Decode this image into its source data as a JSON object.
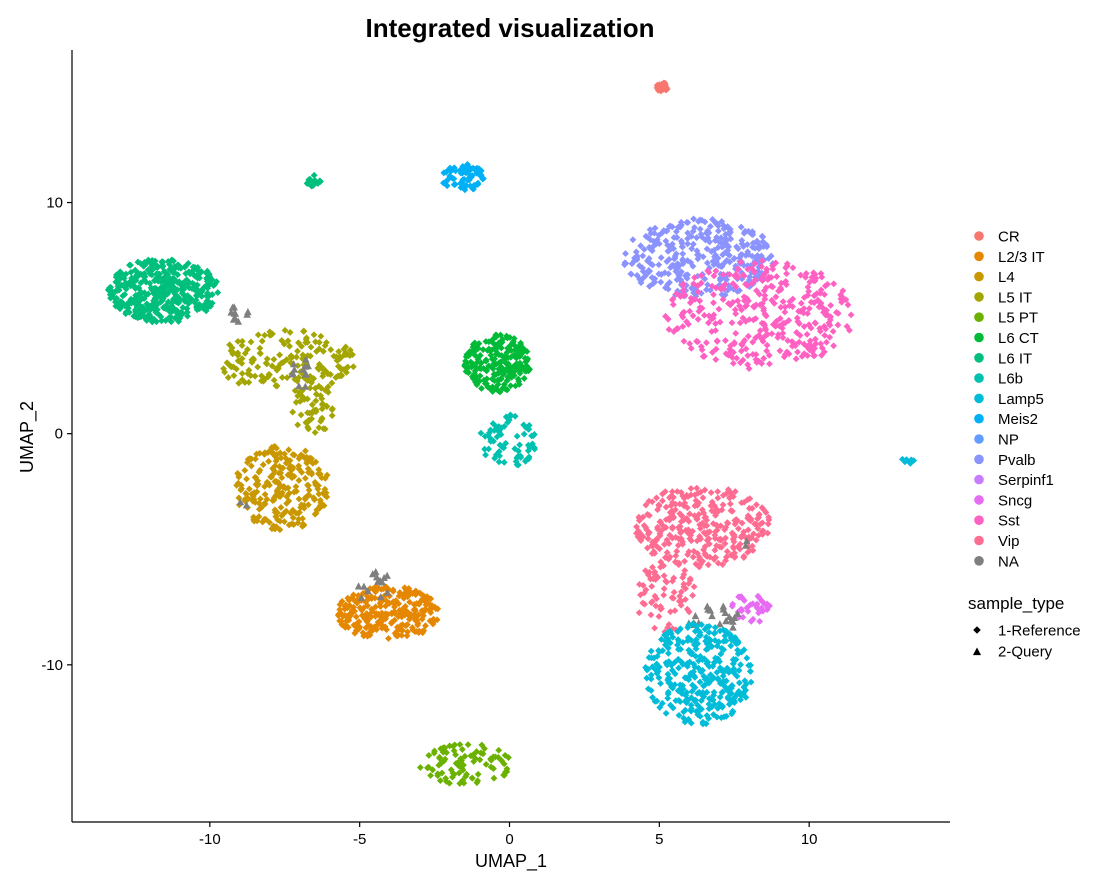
{
  "chart_data": {
    "type": "scatter",
    "title": "Integrated visualization",
    "xlabel": "UMAP_1",
    "ylabel": "UMAP_2",
    "xlim": [
      -14.6,
      14.7
    ],
    "ylim": [
      -16.8,
      16.6
    ],
    "xticks": [
      -10,
      -5,
      0,
      5,
      10
    ],
    "yticks": [
      -10,
      0,
      10
    ],
    "grid": false,
    "legend_position": "right",
    "color_legend_title": "",
    "shape_legend_title": "sample_type",
    "shapes": [
      {
        "name": "1-Reference",
        "marker": "diamond"
      },
      {
        "name": "2-Query",
        "marker": "triangle"
      }
    ],
    "categories": [
      {
        "name": "CR",
        "color": "#F8766D"
      },
      {
        "name": "L2/3 IT",
        "color": "#E58700"
      },
      {
        "name": "L4",
        "color": "#C99800"
      },
      {
        "name": "L5 IT",
        "color": "#A3A500"
      },
      {
        "name": "L5 PT",
        "color": "#6BB100"
      },
      {
        "name": "L6 CT",
        "color": "#00BA38"
      },
      {
        "name": "L6 IT",
        "color": "#00BF7D"
      },
      {
        "name": "L6b",
        "color": "#00C0AF"
      },
      {
        "name": "Lamp5",
        "color": "#00BCD8"
      },
      {
        "name": "Meis2",
        "color": "#00B0F6"
      },
      {
        "name": "NP",
        "color": "#619CFF"
      },
      {
        "name": "Pvalb",
        "color": "#8B93FF"
      },
      {
        "name": "Serpinf1",
        "color": "#C77CFF"
      },
      {
        "name": "Sncg",
        "color": "#E76BF3"
      },
      {
        "name": "Sst",
        "color": "#FF61C3"
      },
      {
        "name": "Vip",
        "color": "#FF6C91"
      },
      {
        "name": "NA",
        "color": "#7F7F7F"
      }
    ],
    "clusters": [
      {
        "category": "CR",
        "marker": "diamond",
        "x": [
          4.9,
          5.3
        ],
        "y": [
          14.8,
          15.2
        ],
        "n": 25
      },
      {
        "category": "L6 IT",
        "marker": "diamond",
        "x": [
          -13.4,
          -9.7
        ],
        "y": [
          4.8,
          7.6
        ],
        "n": 420
      },
      {
        "category": "L6 IT",
        "marker": "diamond",
        "x": [
          -6.8,
          -6.3
        ],
        "y": [
          10.7,
          11.2
        ],
        "n": 18
      },
      {
        "category": "L5 IT",
        "marker": "diamond",
        "x": [
          -9.8,
          -5.1
        ],
        "y": [
          1.8,
          4.5
        ],
        "n": 170
      },
      {
        "category": "L5 IT",
        "marker": "diamond",
        "x": [
          -7.3,
          -5.8
        ],
        "y": [
          0.0,
          2.5
        ],
        "n": 60
      },
      {
        "category": "L4",
        "marker": "diamond",
        "x": [
          -9.2,
          -6.0
        ],
        "y": [
          -4.2,
          -0.5
        ],
        "n": 240
      },
      {
        "category": "NA",
        "marker": "triangle",
        "x": [
          -9.5,
          -8.7
        ],
        "y": [
          4.8,
          5.6
        ],
        "n": 10
      },
      {
        "category": "NA",
        "marker": "triangle",
        "x": [
          -7.4,
          -6.6
        ],
        "y": [
          1.8,
          3.4
        ],
        "n": 12
      },
      {
        "category": "NA",
        "marker": "triangle",
        "x": [
          -9.0,
          -8.3
        ],
        "y": [
          -3.3,
          -2.8
        ],
        "n": 2
      },
      {
        "category": "Meis2",
        "marker": "diamond",
        "x": [
          -2.3,
          -0.8
        ],
        "y": [
          10.5,
          11.7
        ],
        "n": 70
      },
      {
        "category": "L6 CT",
        "marker": "diamond",
        "x": [
          -1.5,
          0.7
        ],
        "y": [
          1.8,
          4.3
        ],
        "n": 220
      },
      {
        "category": "L6b",
        "marker": "diamond",
        "x": [
          -1.0,
          0.9
        ],
        "y": [
          -1.5,
          0.9
        ],
        "n": 70
      },
      {
        "category": "L2/3 IT",
        "marker": "diamond",
        "x": [
          -5.8,
          -2.3
        ],
        "y": [
          -8.9,
          -6.6
        ],
        "n": 260
      },
      {
        "category": "NA",
        "marker": "triangle",
        "x": [
          -5.1,
          -3.9
        ],
        "y": [
          -7.5,
          -5.9
        ],
        "n": 14
      },
      {
        "category": "L5 PT",
        "marker": "diamond",
        "x": [
          -3.0,
          0.1
        ],
        "y": [
          -15.2,
          -13.4
        ],
        "n": 90
      },
      {
        "category": "Pvalb",
        "marker": "diamond",
        "x": [
          3.8,
          8.9
        ],
        "y": [
          5.9,
          9.3
        ],
        "n": 340
      },
      {
        "category": "Sst",
        "marker": "diamond",
        "x": [
          5.2,
          11.5
        ],
        "y": [
          2.8,
          7.5
        ],
        "n": 360
      },
      {
        "category": "Lamp5",
        "marker": "diamond",
        "x": [
          13.1,
          13.5
        ],
        "y": [
          -1.3,
          -1.0
        ],
        "n": 8
      },
      {
        "category": "Vip",
        "marker": "diamond",
        "x": [
          4.2,
          8.7
        ],
        "y": [
          -5.8,
          -2.2
        ],
        "n": 310
      },
      {
        "category": "Vip",
        "marker": "diamond",
        "x": [
          4.2,
          6.2
        ],
        "y": [
          -8.6,
          -5.5
        ],
        "n": 70
      },
      {
        "category": "Sncg",
        "marker": "diamond",
        "x": [
          7.4,
          8.7
        ],
        "y": [
          -8.2,
          -6.9
        ],
        "n": 35
      },
      {
        "category": "NA",
        "marker": "triangle",
        "x": [
          5.9,
          7.8
        ],
        "y": [
          -8.6,
          -7.3
        ],
        "n": 22
      },
      {
        "category": "Lamp5",
        "marker": "diamond",
        "x": [
          4.5,
          8.1
        ],
        "y": [
          -12.6,
          -8.2
        ],
        "n": 330
      },
      {
        "category": "NA",
        "marker": "triangle",
        "x": [
          7.6,
          8.1
        ],
        "y": [
          -5.0,
          -4.6
        ],
        "n": 2
      }
    ]
  }
}
